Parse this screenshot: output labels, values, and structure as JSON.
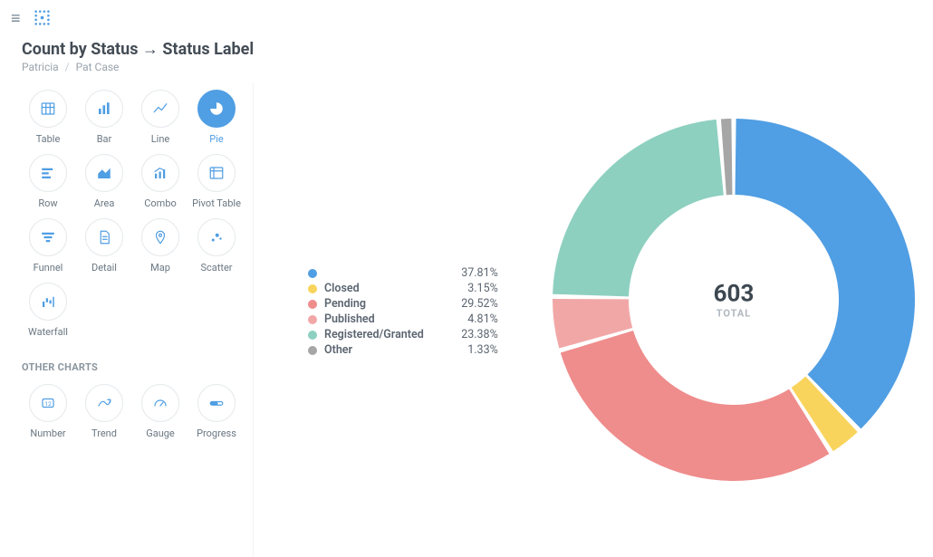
{
  "header": {
    "title": "Count by Status → Status Label",
    "breadcrumb": [
      "Patricia",
      "Pat Case"
    ]
  },
  "sidebar": {
    "primary_label": "",
    "types": [
      {
        "id": "table",
        "label": "Table",
        "icon": "table",
        "selected": false
      },
      {
        "id": "bar",
        "label": "Bar",
        "icon": "bar",
        "selected": false
      },
      {
        "id": "line",
        "label": "Line",
        "icon": "line",
        "selected": false
      },
      {
        "id": "pie",
        "label": "Pie",
        "icon": "pie",
        "selected": true
      },
      {
        "id": "row",
        "label": "Row",
        "icon": "row",
        "selected": false
      },
      {
        "id": "area",
        "label": "Area",
        "icon": "area",
        "selected": false
      },
      {
        "id": "combo",
        "label": "Combo",
        "icon": "combo",
        "selected": false
      },
      {
        "id": "pivot",
        "label": "Pivot Table",
        "icon": "pivot",
        "selected": false
      },
      {
        "id": "funnel",
        "label": "Funnel",
        "icon": "funnel",
        "selected": false
      },
      {
        "id": "detail",
        "label": "Detail",
        "icon": "detail",
        "selected": false
      },
      {
        "id": "map",
        "label": "Map",
        "icon": "map",
        "selected": false
      },
      {
        "id": "scatter",
        "label": "Scatter",
        "icon": "scatter",
        "selected": false
      },
      {
        "id": "waterfall",
        "label": "Waterfall",
        "icon": "waterfall",
        "selected": false
      }
    ],
    "other_label": "OTHER CHARTS",
    "other_types": [
      {
        "id": "number",
        "label": "Number",
        "icon": "number",
        "selected": false
      },
      {
        "id": "trend",
        "label": "Trend",
        "icon": "trend",
        "selected": false
      },
      {
        "id": "gauge",
        "label": "Gauge",
        "icon": "gauge",
        "selected": false
      },
      {
        "id": "progress",
        "label": "Progress",
        "icon": "progress",
        "selected": false
      }
    ]
  },
  "chart": {
    "type": "donut",
    "total_value": "603",
    "total_label": "TOTAL",
    "inner_radius_pct": 58,
    "outer_radius_pct": 100,
    "gap_deg": 1.5,
    "background_color": "#ffffff",
    "slices": [
      {
        "label": "",
        "pct": 37.81,
        "pct_display": "37.81%",
        "color": "#509ee3"
      },
      {
        "label": "Closed",
        "pct": 3.15,
        "pct_display": "3.15%",
        "color": "#f9d45c"
      },
      {
        "label": "Pending",
        "pct": 29.52,
        "pct_display": "29.52%",
        "color": "#ef8c8c"
      },
      {
        "label": "Published",
        "pct": 4.81,
        "pct_display": "4.81%",
        "color": "#f2a7a7"
      },
      {
        "label": "Registered/Granted",
        "pct": 23.38,
        "pct_display": "23.38%",
        "color": "#88bf9f"
      },
      {
        "label": "Other",
        "pct": 1.33,
        "pct_display": "1.33%",
        "color": "#a6a6a6"
      }
    ],
    "slice_colors_override": {
      "Registered/Granted": "#8ed0c0"
    },
    "legend_fontsize": 12.5,
    "center_value_fontsize": 26,
    "center_label_fontsize": 11
  }
}
